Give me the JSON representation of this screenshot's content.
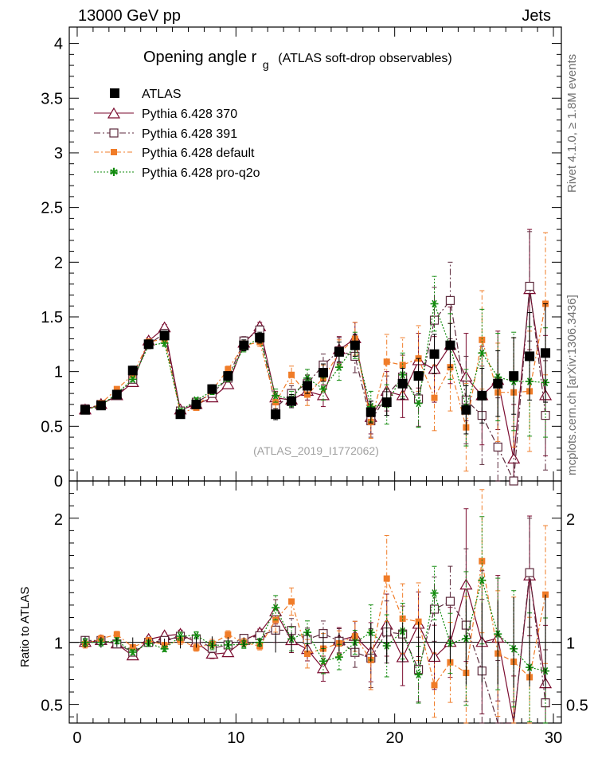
{
  "header": {
    "left": "13000 GeV pp",
    "right": "Jets"
  },
  "side_labels": {
    "rivet": "Rivet 4.1.0, ≥ 1.8M events",
    "mcplots": "mcplots.cern.ch [arXiv:1306.3436]"
  },
  "chart_data": {
    "type": "line",
    "title_main": "Opening angle r",
    "title_sub": "g",
    "title_extra": "(ATLAS soft-drop observables)",
    "analysis": "(ATLAS_2019_I1772062)",
    "xlim": [
      -0.5,
      30.5
    ],
    "xticks": [
      0,
      10,
      20,
      30
    ],
    "main": {
      "ylim": [
        0,
        4.15
      ],
      "yticks": [
        0,
        0.5,
        1,
        1.5,
        2,
        2.5,
        3,
        3.5,
        4
      ],
      "ytick_labels": [
        "0",
        "0.5",
        "1",
        "1.5",
        "2",
        "2.5",
        "3",
        "3.5",
        "4"
      ]
    },
    "ratio": {
      "ylabel": "Ratio to ATLAS",
      "ylim": [
        0.35,
        2.3
      ],
      "yticks": [
        0.5,
        1,
        2
      ],
      "ytick_labels": [
        "0.5",
        "1",
        "2"
      ]
    },
    "x": [
      0.5,
      1.5,
      2.5,
      3.5,
      4.5,
      5.5,
      6.5,
      7.5,
      8.5,
      9.5,
      10.5,
      11.5,
      12.5,
      13.5,
      14.5,
      15.5,
      16.5,
      17.5,
      18.5,
      19.5,
      20.5,
      21.5,
      22.5,
      23.5,
      24.5,
      25.5,
      26.5,
      27.5,
      28.5,
      29.5
    ],
    "series": [
      {
        "name": "ATLAS",
        "color": "#000000",
        "marker": "square-filled",
        "dash": "",
        "values": [
          0.65,
          0.69,
          0.79,
          1.01,
          1.25,
          1.33,
          0.61,
          0.7,
          0.84,
          0.96,
          1.24,
          1.31,
          0.61,
          0.73,
          0.87,
          0.99,
          1.18,
          1.24,
          0.63,
          0.72,
          0.89,
          0.96,
          1.16,
          1.24,
          0.65,
          0.78,
          0.89,
          0.96,
          1.14,
          1.17
        ],
        "errors": [
          0.03,
          0.03,
          0.03,
          0.04,
          0.04,
          0.04,
          0.03,
          0.03,
          0.04,
          0.04,
          0.05,
          0.05,
          0.05,
          0.06,
          0.07,
          0.08,
          0.09,
          0.1,
          0.1,
          0.12,
          0.14,
          0.16,
          0.18,
          0.2,
          0.22,
          0.25,
          0.3,
          0.35,
          0.4,
          0.45
        ]
      },
      {
        "name": "Pythia 6.428 370",
        "color": "#7a0a2e",
        "marker": "triangle-open",
        "dash": "",
        "values": [
          0.65,
          0.7,
          0.78,
          0.9,
          1.28,
          1.4,
          0.65,
          0.7,
          0.76,
          0.88,
          1.26,
          1.41,
          0.76,
          0.74,
          0.82,
          0.78,
          1.2,
          1.3,
          0.58,
          0.82,
          0.78,
          1.1,
          1.02,
          1.24,
          0.95,
          0.78,
          0.92,
          0.2,
          1.75,
          0.78
        ],
        "errors": [
          0.02,
          0.02,
          0.02,
          0.02,
          0.03,
          0.03,
          0.02,
          0.02,
          0.03,
          0.03,
          0.04,
          0.04,
          0.06,
          0.07,
          0.08,
          0.1,
          0.12,
          0.15,
          0.15,
          0.18,
          0.2,
          0.25,
          0.3,
          0.35,
          0.4,
          0.45,
          0.45,
          0.5,
          0.55,
          0.55
        ]
      },
      {
        "name": "Pythia 6.428 391",
        "color": "#5c2a3c",
        "marker": "square-open",
        "dash": "8,3,2,3",
        "values": [
          0.66,
          0.7,
          0.78,
          0.93,
          1.25,
          1.35,
          0.64,
          0.72,
          0.8,
          0.94,
          1.28,
          1.38,
          0.67,
          0.8,
          0.89,
          1.06,
          1.19,
          1.14,
          0.55,
          0.78,
          0.95,
          0.75,
          1.47,
          1.65,
          0.74,
          0.6,
          0.31,
          0.0,
          1.78,
          0.6
        ],
        "errors": [
          0.02,
          0.02,
          0.02,
          0.02,
          0.03,
          0.03,
          0.02,
          0.02,
          0.03,
          0.03,
          0.04,
          0.04,
          0.06,
          0.07,
          0.08,
          0.1,
          0.12,
          0.15,
          0.15,
          0.18,
          0.2,
          0.25,
          0.3,
          0.35,
          0.4,
          0.45,
          0.45,
          0.5,
          0.5,
          0.5
        ]
      },
      {
        "name": "Pythia 6.428 default",
        "color": "#f07c28",
        "marker": "square-filled-small",
        "dash": "6,3,2,3",
        "values": [
          0.64,
          0.71,
          0.84,
          0.97,
          1.27,
          1.3,
          0.62,
          0.67,
          0.83,
          1.02,
          1.24,
          1.27,
          0.72,
          0.97,
          0.79,
          0.94,
          1.17,
          1.3,
          0.54,
          1.09,
          1.06,
          1.12,
          0.76,
          1.04,
          0.49,
          1.29,
          0.81,
          0.81,
          0.82,
          1.62
        ],
        "errors": [
          0.02,
          0.02,
          0.02,
          0.02,
          0.03,
          0.03,
          0.02,
          0.02,
          0.03,
          0.03,
          0.04,
          0.04,
          0.06,
          0.08,
          0.1,
          0.12,
          0.12,
          0.15,
          0.15,
          0.25,
          0.25,
          0.3,
          0.3,
          0.4,
          0.4,
          0.45,
          0.45,
          0.5,
          0.55,
          0.65
        ]
      },
      {
        "name": "Pythia 6.428 pro-q2o",
        "color": "#128b0e",
        "marker": "star",
        "dash": "2,2",
        "values": [
          0.65,
          0.69,
          0.8,
          0.93,
          1.24,
          1.26,
          0.64,
          0.74,
          0.82,
          0.94,
          1.22,
          1.31,
          0.78,
          0.75,
          0.94,
          0.84,
          1.04,
          1.24,
          0.68,
          0.7,
          0.97,
          0.71,
          1.62,
          1.23,
          0.67,
          1.17,
          0.95,
          0.91,
          0.91,
          0.9
        ],
        "errors": [
          0.02,
          0.02,
          0.02,
          0.02,
          0.03,
          0.03,
          0.02,
          0.02,
          0.03,
          0.03,
          0.04,
          0.04,
          0.06,
          0.07,
          0.08,
          0.1,
          0.12,
          0.12,
          0.14,
          0.18,
          0.2,
          0.22,
          0.25,
          0.3,
          0.35,
          0.4,
          0.4,
          0.45,
          0.5,
          0.5
        ]
      }
    ]
  }
}
